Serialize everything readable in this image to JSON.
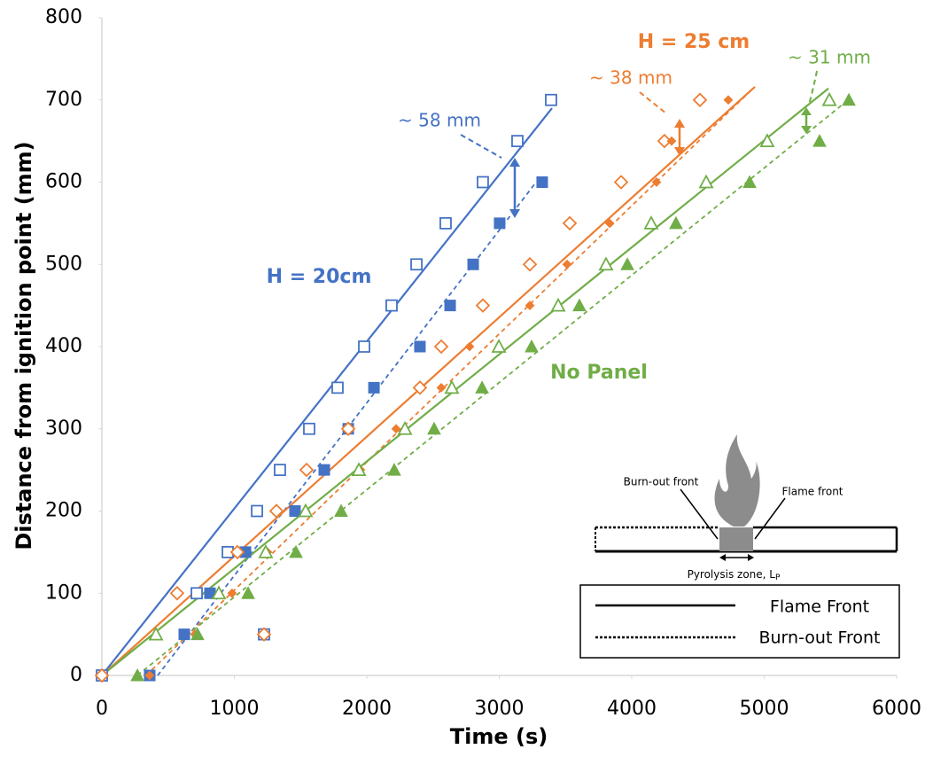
{
  "chart_data": {
    "type": "scatter",
    "y_label": "Distance from ignition point (mm)",
    "x_label": "Time (s)",
    "xlim": [
      0,
      6000
    ],
    "xticks": [
      0,
      1000,
      2000,
      3000,
      4000,
      5000,
      6000
    ],
    "ylim": [
      0,
      800
    ],
    "yticks": [
      0,
      100,
      200,
      300,
      400,
      500,
      600,
      700,
      800
    ],
    "grid": false,
    "series": [
      {
        "color": "#4472c4",
        "marker": "square",
        "filled": false,
        "x": [
          0,
          1224,
          716,
          950,
          1171,
          1344,
          1565,
          1779,
          1980,
          2187,
          2375,
          2595,
          2876,
          3137,
          3391
        ],
        "values": [
          0,
          50,
          100,
          150,
          200,
          250,
          300,
          350,
          400,
          450,
          500,
          550,
          600,
          650,
          700
        ]
      },
      {
        "color": "#4472c4",
        "marker": "square",
        "filled": true,
        "x": [
          361,
          622,
          816,
          1084,
          1458,
          1679,
          1860,
          2054,
          2401,
          2629,
          2803,
          3003,
          3324
        ],
        "values": [
          0,
          50,
          100,
          150,
          200,
          250,
          300,
          350,
          400,
          450,
          500,
          550,
          600
        ]
      },
      {
        "color": "#ed7d31",
        "marker": "diamond",
        "filled": false,
        "x": [
          0,
          1224,
          568,
          1023,
          1318,
          1545,
          1860,
          2401,
          2562,
          2876,
          3231,
          3532,
          3920,
          4247,
          4515
        ],
        "values": [
          0,
          50,
          100,
          150,
          200,
          250,
          300,
          350,
          400,
          450,
          500,
          550,
          600,
          650,
          700
        ]
      },
      {
        "color": "#ed7d31",
        "marker": "diamond",
        "filled": true,
        "x": [
          360,
          702,
          983,
          1251,
          1538,
          1953,
          2221,
          2562,
          2776,
          3231,
          3512,
          3833,
          4187,
          4301,
          4729
        ],
        "values": [
          0,
          50,
          100,
          150,
          200,
          250,
          300,
          350,
          400,
          450,
          500,
          550,
          600,
          650,
          700
        ]
      },
      {
        "color": "#70ad47",
        "marker": "triangle",
        "filled": false,
        "x": [
          408,
          883,
          1237,
          1538,
          1940,
          2288,
          2642,
          2997,
          3445,
          3806,
          4147,
          4562,
          5023,
          5492
        ],
        "values": [
          50,
          100,
          150,
          200,
          250,
          300,
          350,
          400,
          450,
          500,
          550,
          600,
          650,
          700
        ]
      },
      {
        "color": "#70ad47",
        "marker": "triangle",
        "filled": true,
        "x": [
          268,
          722,
          1104,
          1465,
          1806,
          2207,
          2508,
          2870,
          3244,
          3605,
          3967,
          4334,
          4890,
          5418,
          5639
        ],
        "values": [
          0,
          50,
          100,
          150,
          200,
          250,
          300,
          350,
          400,
          450,
          500,
          550,
          600,
          650,
          700
        ]
      }
    ],
    "fits": [
      {
        "color": "#4472c4",
        "style": "solid",
        "x": [
          0,
          3398
        ],
        "y": [
          0,
          690
        ]
      },
      {
        "color": "#4472c4",
        "style": "dashed",
        "x": [
          421,
          3278
        ],
        "y": [
          0,
          600
        ]
      },
      {
        "color": "#ed7d31",
        "style": "solid",
        "x": [
          0,
          4930
        ],
        "y": [
          0,
          716
        ]
      },
      {
        "color": "#ed7d31",
        "style": "dashed",
        "x": [
          334,
          4916
        ],
        "y": [
          0,
          714
        ]
      },
      {
        "color": "#70ad47",
        "style": "solid",
        "x": [
          0,
          5485
        ],
        "y": [
          0,
          714
        ]
      },
      {
        "color": "#70ad47",
        "style": "dashed",
        "x": [
          268,
          5619
        ],
        "y": [
          0,
          698
        ]
      }
    ],
    "annotations": [
      "H = 20cm",
      "H = 25 cm",
      "No Panel",
      "~ 58 mm",
      "~ 38 mm",
      "~ 31 mm"
    ],
    "inset": {
      "burnout_label": "Burn-out front",
      "flame_label": "Flame front",
      "pyrolysis_label": "Pyrolysis zone, L",
      "pyrolysis_sub": "P"
    },
    "legend": [
      "Flame Front",
      "Burn-out Front"
    ]
  }
}
